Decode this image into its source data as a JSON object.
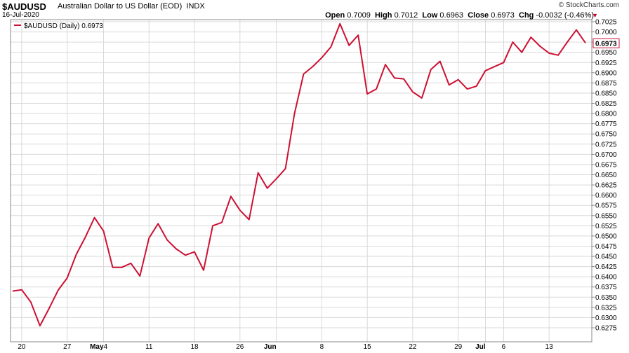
{
  "header": {
    "symbol": "$AUDUSD",
    "name": "Australian Dollar to US Dollar (EOD)",
    "exchange": "INDX",
    "date": "16-Jul-2020",
    "brand": "© StockCharts.com",
    "open_label": "Open",
    "open": "0.7009",
    "high_label": "High",
    "high": "0.7012",
    "low_label": "Low",
    "low": "0.6963",
    "close_label": "Close",
    "close": "0.6973",
    "chg_label": "Chg",
    "chg": "-0.0032 (-0.46%)",
    "chg_arrow": "▼"
  },
  "legend": {
    "text": "$AUDUSD (Daily) 0.6973"
  },
  "last_value_label": "0.6973",
  "colors": {
    "line": "#cc1133",
    "grid": "#d9d9d9",
    "frame": "#888888",
    "last_box_border": "#cc1133"
  },
  "chart_data": {
    "type": "line",
    "ylim": [
      0.6275,
      0.7025
    ],
    "y_ticks": [
      "0.7025",
      "0.7000",
      "0.6975",
      "0.6950",
      "0.6925",
      "0.6900",
      "0.6875",
      "0.6850",
      "0.6825",
      "0.6800",
      "0.6775",
      "0.6750",
      "0.6725",
      "0.6700",
      "0.6675",
      "0.6650",
      "0.6625",
      "0.6600",
      "0.6575",
      "0.6550",
      "0.6525",
      "0.6500",
      "0.6475",
      "0.6450",
      "0.6425",
      "0.6400",
      "0.6375",
      "0.6350",
      "0.6325",
      "0.6300",
      "0.6275"
    ],
    "x_ticks": [
      {
        "label": "20",
        "index": 1,
        "bold": false
      },
      {
        "label": "27",
        "index": 6,
        "bold": false
      },
      {
        "label": "May",
        "index": 10,
        "bold": true
      },
      {
        "label": "4",
        "index": 10,
        "bold": false
      },
      {
        "label": "11",
        "index": 15,
        "bold": false
      },
      {
        "label": "18",
        "index": 20,
        "bold": false
      },
      {
        "label": "26",
        "index": 25,
        "bold": false
      },
      {
        "label": "Jun",
        "index": 29,
        "bold": true
      },
      {
        "label": "8",
        "index": 34,
        "bold": false
      },
      {
        "label": "15",
        "index": 39,
        "bold": false
      },
      {
        "label": "22",
        "index": 44,
        "bold": false
      },
      {
        "label": "29",
        "index": 49,
        "bold": false
      },
      {
        "label": "Jul",
        "index": 52,
        "bold": true
      },
      {
        "label": "6",
        "index": 54,
        "bold": false
      },
      {
        "label": "13",
        "index": 59,
        "bold": false
      }
    ],
    "series": [
      {
        "name": "$AUDUSD (Daily)",
        "values": [
          0.6365,
          0.6368,
          0.6338,
          0.628,
          0.6322,
          0.6367,
          0.6397,
          0.6455,
          0.6497,
          0.6545,
          0.6512,
          0.6423,
          0.6423,
          0.6433,
          0.6402,
          0.6495,
          0.653,
          0.649,
          0.6468,
          0.6453,
          0.6461,
          0.6416,
          0.6525,
          0.6533,
          0.6597,
          0.6563,
          0.654,
          0.6655,
          0.6617,
          0.664,
          0.6665,
          0.68,
          0.6897,
          0.6915,
          0.6937,
          0.6963,
          0.702,
          0.6967,
          0.6992,
          0.6848,
          0.686,
          0.692,
          0.6887,
          0.6885,
          0.6853,
          0.6838,
          0.6908,
          0.6928,
          0.687,
          0.6883,
          0.686,
          0.6867,
          0.6905,
          0.6915,
          0.6925,
          0.6975,
          0.695,
          0.6987,
          0.6965,
          0.6948,
          0.6943,
          0.6975,
          0.7005,
          0.6973
        ]
      }
    ]
  }
}
